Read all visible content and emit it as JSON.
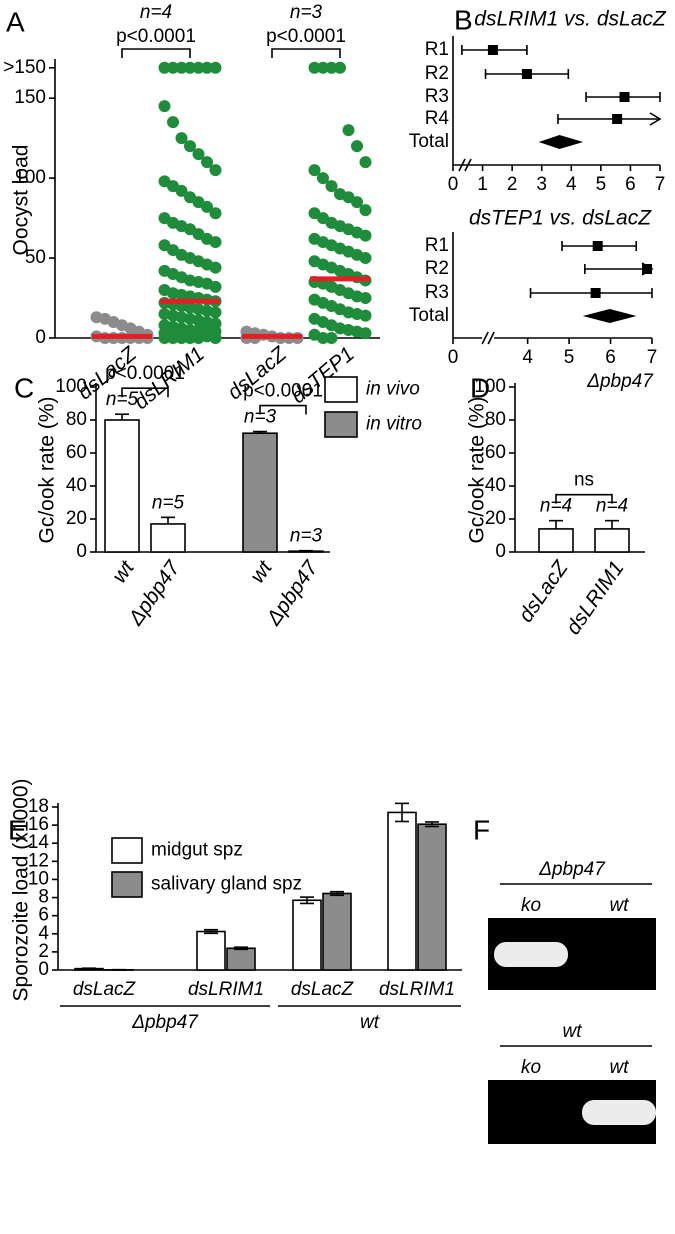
{
  "chart_data": [
    {
      "panel": "A",
      "type": "dotplot",
      "ylabel": "Oocyst load",
      "categories": [
        "dsLacZ",
        "dsLRIM1",
        "dsLacZ",
        "dsTEP1"
      ],
      "colors": [
        "#8c8c8c",
        "#1f8c3b",
        "#8c8c8c",
        "#1f8c3b"
      ],
      "points": [
        [
          13,
          12,
          10,
          8,
          6,
          4,
          2,
          1,
          0,
          0,
          0,
          0,
          0,
          0
        ],
        [
          169,
          169,
          169,
          169,
          169,
          169,
          169,
          145,
          135,
          125,
          120,
          115,
          110,
          105,
          98,
          95,
          92,
          88,
          85,
          82,
          78,
          75,
          72,
          70,
          68,
          65,
          62,
          60,
          58,
          55,
          52,
          50,
          48,
          46,
          44,
          42,
          40,
          38,
          36,
          35,
          34,
          32,
          30,
          28,
          27,
          26,
          25,
          24,
          23,
          22,
          21,
          20,
          19,
          18,
          17,
          16,
          15,
          14,
          13,
          12,
          11,
          10,
          9,
          8,
          7,
          6,
          5,
          5,
          4,
          4,
          3,
          3,
          2,
          2,
          1,
          1,
          0,
          0,
          0,
          0,
          0,
          0
        ],
        [
          4,
          3,
          2,
          1,
          0,
          0,
          0,
          0,
          0
        ],
        [
          169,
          169,
          169,
          169,
          130,
          120,
          110,
          105,
          100,
          95,
          90,
          88,
          85,
          80,
          78,
          75,
          72,
          70,
          68,
          66,
          64,
          62,
          60,
          58,
          56,
          54,
          52,
          50,
          48,
          46,
          44,
          42,
          40,
          38,
          36,
          35,
          34,
          32,
          30,
          28,
          26,
          25,
          24,
          22,
          20,
          18,
          16,
          15,
          14,
          12,
          10,
          8,
          6,
          5,
          4,
          3,
          2,
          0,
          0
        ]
      ],
      "medians": [
        1,
        23,
        1,
        37
      ],
      "median_color": "#e41e26",
      "ylim": [
        0,
        172
      ],
      "yticks": [
        0,
        50,
        100,
        150,
        {
          "value": 169,
          "label": ">150"
        }
      ],
      "comparisons": [
        {
          "pair": [
            0,
            1
          ],
          "n": "n=4",
          "p": "p<0.0001"
        },
        {
          "pair": [
            2,
            3
          ],
          "n": "n=3",
          "p": "p<0.0001"
        }
      ]
    },
    {
      "panel": "B",
      "type": "forest",
      "plots": [
        {
          "title": "dsLRIM1 vs. dsLacZ",
          "rows": [
            "R1",
            "R2",
            "R3",
            "R4"
          ],
          "estimates": [
            1.35,
            2.5,
            5.8,
            5.55
          ],
          "lower": [
            0.3,
            1.1,
            4.5,
            3.55
          ],
          "upper": [
            2.5,
            3.9,
            7.0,
            7.0
          ],
          "arrows": [
            false,
            false,
            false,
            true
          ],
          "total": {
            "label": "Total",
            "estimate": 3.6,
            "lower": 2.9,
            "upper": 4.4
          },
          "xlim": [
            0,
            7
          ],
          "xticks": [
            0,
            1,
            2,
            3,
            4,
            5,
            6,
            7
          ]
        },
        {
          "title": "dsTEP1 vs. dsLacZ",
          "rows": [
            "R1",
            "R2",
            "R3"
          ],
          "estimates": [
            5.69,
            6.88,
            5.64
          ],
          "lower": [
            4.83,
            5.38,
            4.07
          ],
          "upper": [
            6.62,
            7.0,
            7.0
          ],
          "arrows": [
            false,
            true,
            false
          ],
          "total": {
            "label": "Total",
            "estimate": 5.98,
            "lower": 5.33,
            "upper": 6.62
          },
          "xlim": [
            0,
            7
          ],
          "xbreak": [
            0.8,
            3.0
          ],
          "xticks": [
            0,
            4,
            5,
            6,
            7
          ]
        }
      ]
    },
    {
      "panel": "C",
      "type": "bar",
      "ylabel": "Gc/ook rate (%)",
      "categories": [
        "wt",
        "Δpbp47",
        "wt",
        "Δpbp47"
      ],
      "series": [
        {
          "name": "in vivo",
          "color": "#ffffff",
          "values": [
            80,
            17,
            null,
            null
          ],
          "errors": [
            3.5,
            4,
            null,
            null
          ]
        },
        {
          "name": "in vitro",
          "color": "#8c8c8c",
          "values": [
            null,
            null,
            72,
            0.5
          ],
          "errors": [
            null,
            null,
            1,
            0.3
          ]
        }
      ],
      "n_labels": [
        "n=5",
        "n=5",
        "n=3",
        "n=3"
      ],
      "comparisons": [
        {
          "pair": [
            0,
            1
          ],
          "p": "p<0.0001"
        },
        {
          "pair": [
            2,
            3
          ],
          "p": "p<0.0001"
        }
      ],
      "ylim": [
        0,
        100
      ],
      "yticks": [
        0,
        20,
        40,
        60,
        80,
        100
      ],
      "legend": "right"
    },
    {
      "panel": "D",
      "type": "bar",
      "subtitle": "Δpbp47",
      "ylabel": "Gc/ook rate (%)",
      "categories": [
        "dsLacZ",
        "dsLRIM1"
      ],
      "series": [
        {
          "color": "#ffffff",
          "values": [
            14,
            14
          ],
          "errors": [
            5,
            5
          ]
        }
      ],
      "n_labels": [
        "n=4",
        "n=4"
      ],
      "comparisons": [
        {
          "pair": [
            0,
            1
          ],
          "p": "ns"
        }
      ],
      "ylim": [
        0,
        100
      ],
      "yticks": [
        0,
        20,
        40,
        60,
        80,
        100
      ]
    },
    {
      "panel": "E",
      "type": "bar",
      "ylabel": "Sporozoite load (x1000)",
      "categories": [
        "dsLacZ",
        "dsLRIM1",
        "dsLacZ",
        "dsLRIM1"
      ],
      "groups": [
        {
          "label": "Δpbp47",
          "span": [
            0,
            1
          ]
        },
        {
          "label": "wt",
          "span": [
            2,
            3
          ]
        }
      ],
      "series": [
        {
          "name": "midgut spz",
          "color": "#ffffff",
          "values": [
            0.15,
            4.25,
            7.7,
            17.4
          ],
          "errors": [
            0.05,
            0.2,
            0.35,
            1.0
          ]
        },
        {
          "name": "salivary gland spz",
          "color": "#8c8c8c",
          "values": [
            0.02,
            2.4,
            8.45,
            16.1
          ],
          "errors": [
            0.02,
            0.12,
            0.2,
            0.25
          ]
        }
      ],
      "ylim": [
        0,
        18
      ],
      "yticks": [
        0,
        2,
        4,
        6,
        8,
        10,
        12,
        14,
        16,
        18
      ],
      "legend": "upper left"
    },
    {
      "panel": "F",
      "type": "gel",
      "gels": [
        {
          "title": "Δpbp47",
          "lanes": [
            "ko",
            "wt"
          ],
          "bands": [
            true,
            false
          ]
        },
        {
          "title": "wt",
          "lanes": [
            "ko",
            "wt"
          ],
          "bands": [
            false,
            true
          ]
        }
      ]
    }
  ]
}
